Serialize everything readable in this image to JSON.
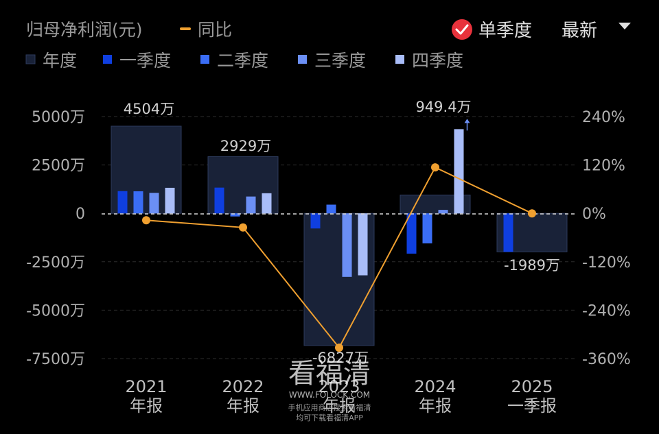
{
  "header": {
    "metric_label": "归母净利润(元)",
    "yoy_label": "同比",
    "single_quarter_label": "单季度",
    "single_quarter_checked": true,
    "sort_label": "最新"
  },
  "legend": [
    "年度",
    "一季度",
    "二季度",
    "三季度",
    "四季度"
  ],
  "colors": {
    "annual_fill": "#192238",
    "annual_stroke": "#2d3a5c",
    "q1": "#0f3fe0",
    "q2": "#3a6df5",
    "q3": "#6b8ff5",
    "q4": "#a9bdf8",
    "line": "#f0a030",
    "check_badge": "#e8323c"
  },
  "watermark": {
    "brand": "看福清",
    "site": "WWW.FOLOCK.COM",
    "line1": "手机应用商店搜索看福清",
    "line2": "均可下载看福清APP"
  },
  "chart_data": {
    "type": "bar",
    "categories": [
      "2021\n年报",
      "2022\n年报",
      "2023\n年报",
      "2024\n年报",
      "2025\n一季报"
    ],
    "annual_values": [
      4504,
      2929,
      -6827,
      949.4,
      -1989
    ],
    "annual_labels": [
      "4504万",
      "2929万",
      "-6827万",
      "949.4万",
      "-1989万"
    ],
    "series": [
      {
        "name": "一季度",
        "values": [
          1150,
          1330,
          -780,
          -2080,
          -1989
        ]
      },
      {
        "name": "二季度",
        "values": [
          1140,
          -160,
          450,
          -1550,
          null
        ]
      },
      {
        "name": "三季度",
        "values": [
          1060,
          870,
          -3280,
          180,
          null
        ]
      },
      {
        "name": "四季度",
        "values": [
          1320,
          1040,
          -3200,
          4350,
          null
        ]
      }
    ],
    "yoy": {
      "name": "同比",
      "values": [
        -17,
        -35,
        -333,
        114,
        0
      ]
    },
    "left_axis": {
      "ticks": [
        5000,
        2500,
        0,
        -2500,
        -5000,
        -7500
      ],
      "tick_labels": [
        "5000万",
        "2500万",
        "0",
        "-2500万",
        "-5000万",
        "-7500万"
      ],
      "ylim": [
        -7500,
        5000
      ]
    },
    "right_axis": {
      "ticks": [
        240,
        120,
        0,
        -120,
        -240,
        -360
      ],
      "tick_labels": [
        "240%",
        "120%",
        "0%",
        "-120%",
        "-240%",
        "-360%"
      ],
      "ylim": [
        -360,
        240
      ]
    },
    "grid": true
  }
}
